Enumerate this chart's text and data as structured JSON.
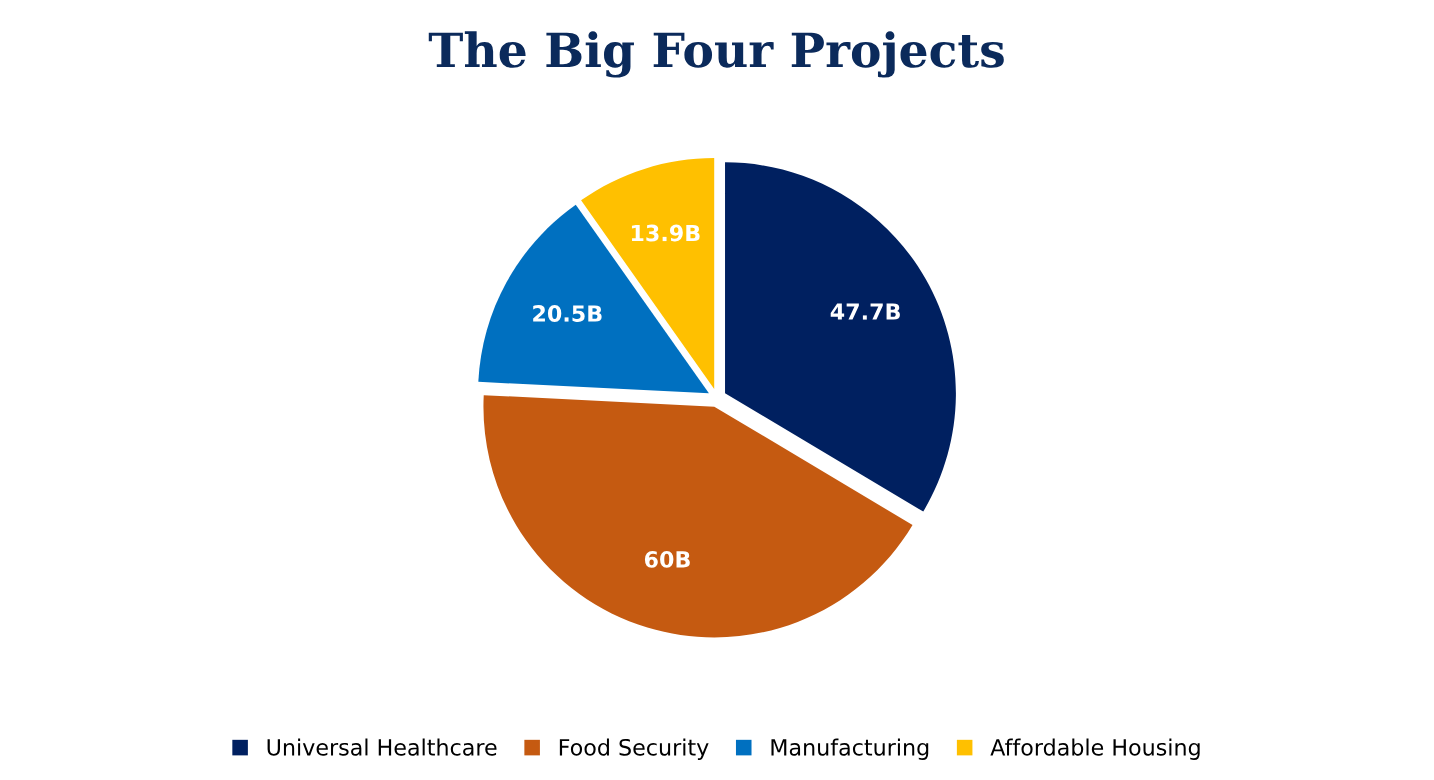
{
  "chart_data": {
    "type": "pie",
    "title": "The Big Four Projects",
    "categories": [
      "Universal Healthcare",
      "Food Security",
      "Manufacturing",
      "Affordable Housing"
    ],
    "values": [
      47.7,
      60,
      20.5,
      13.9
    ],
    "value_labels": [
      "47.7B",
      "60B",
      "20.5B",
      "13.9B"
    ],
    "colors": [
      "#002060",
      "#c55a11",
      "#0070c0",
      "#ffc000"
    ],
    "legend": "bottom"
  }
}
